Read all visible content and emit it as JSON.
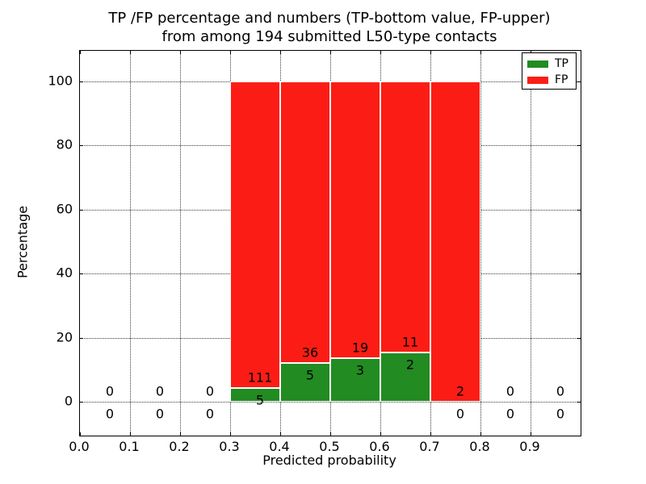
{
  "figure": {
    "title_line1": "TP /FP percentage and numbers (TP-bottom value, FP-upper)",
    "title_line2": "from among 194 submitted L50-type contacts",
    "background_color": "#ffffff"
  },
  "chart_data": {
    "type": "bar",
    "stacked": true,
    "title": "TP /FP percentage and numbers (TP-bottom value, FP-upper) from among 194 submitted L50-type contacts",
    "xlabel": "Predicted probability",
    "ylabel": "Percentage",
    "xlim": [
      0.0,
      1.0
    ],
    "ylim": [
      -10.6,
      109.6
    ],
    "grid": "dotted",
    "total_submitted": 194,
    "x_ticks": [
      {
        "label": "0.0",
        "value": 0.0
      },
      {
        "label": "0.1",
        "value": 0.1
      },
      {
        "label": "0.2",
        "value": 0.2
      },
      {
        "label": "0.3",
        "value": 0.3
      },
      {
        "label": "0.4",
        "value": 0.4
      },
      {
        "label": "0.5",
        "value": 0.5
      },
      {
        "label": "0.6",
        "value": 0.6
      },
      {
        "label": "0.7",
        "value": 0.7
      },
      {
        "label": "0.8",
        "value": 0.8
      },
      {
        "label": "0.9",
        "value": 0.9
      }
    ],
    "y_ticks": [
      {
        "label": "0",
        "value": 0
      },
      {
        "label": "20",
        "value": 20
      },
      {
        "label": "40",
        "value": 40
      },
      {
        "label": "60",
        "value": 60
      },
      {
        "label": "80",
        "value": 80
      },
      {
        "label": "100",
        "value": 100
      }
    ],
    "bins": [
      {
        "range": [
          0.0,
          0.1
        ],
        "tp": 0,
        "fp": 0
      },
      {
        "range": [
          0.1,
          0.2
        ],
        "tp": 0,
        "fp": 0
      },
      {
        "range": [
          0.2,
          0.3
        ],
        "tp": 0,
        "fp": 0
      },
      {
        "range": [
          0.3,
          0.4
        ],
        "tp": 5,
        "fp": 111
      },
      {
        "range": [
          0.4,
          0.5
        ],
        "tp": 5,
        "fp": 36
      },
      {
        "range": [
          0.5,
          0.6
        ],
        "tp": 3,
        "fp": 19
      },
      {
        "range": [
          0.6,
          0.7
        ],
        "tp": 2,
        "fp": 11
      },
      {
        "range": [
          0.7,
          0.8
        ],
        "tp": 0,
        "fp": 2
      },
      {
        "range": [
          0.8,
          0.9
        ],
        "tp": 0,
        "fp": 0
      },
      {
        "range": [
          0.9,
          1.0
        ],
        "tp": 0,
        "fp": 0
      }
    ],
    "legend": {
      "position": "upper right",
      "entries": [
        {
          "label": "TP",
          "color": "#228b22"
        },
        {
          "label": "FP",
          "color": "#fb1d15"
        }
      ]
    }
  }
}
